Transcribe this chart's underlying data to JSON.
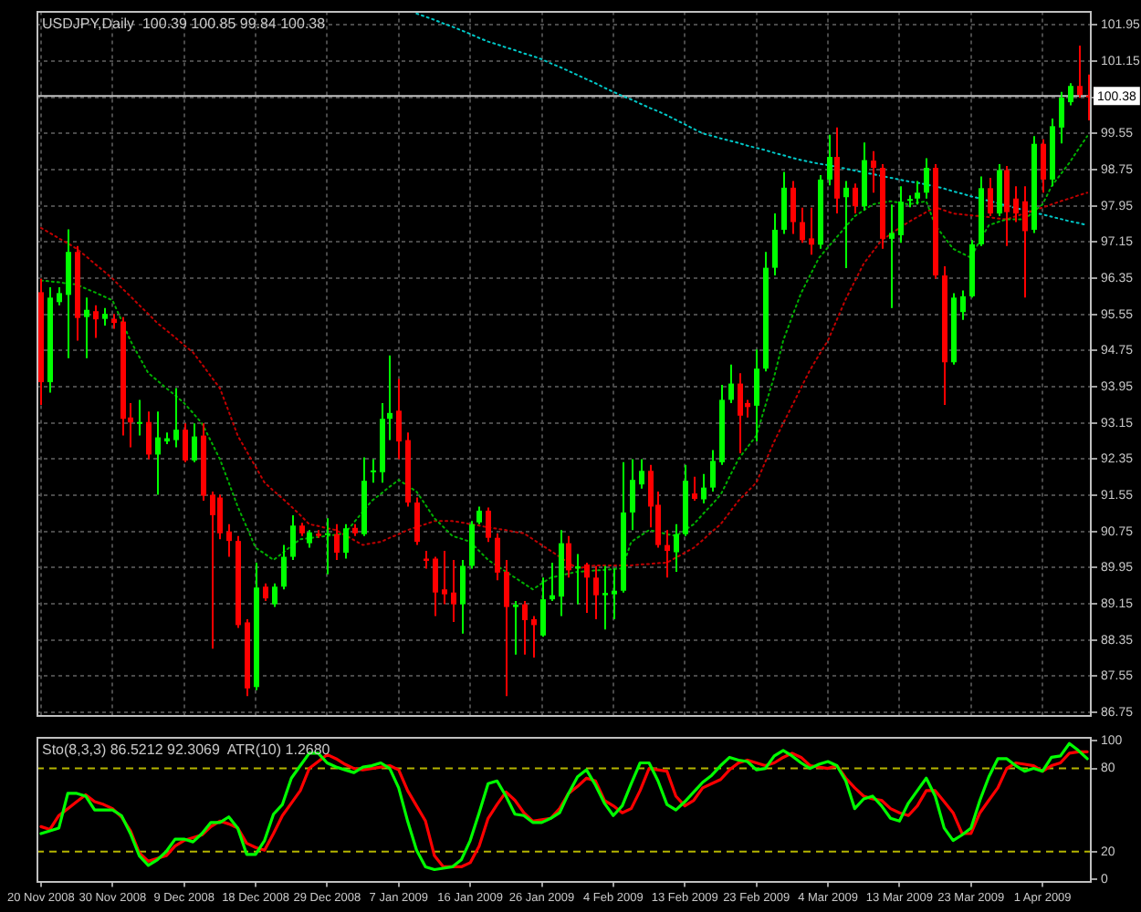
{
  "chart_data": [
    {
      "type": "candlestick",
      "title": "USDJPY,Daily  100.39 100.85 99.84 100.38",
      "categories": [
        null,
        null,
        null,
        null,
        null,
        null,
        null,
        null,
        null,
        null,
        null,
        null,
        null,
        null,
        null,
        null,
        null,
        null,
        null,
        null,
        null,
        null,
        null,
        null,
        null,
        null,
        null,
        null,
        null,
        null,
        null,
        null,
        null,
        null,
        null,
        null,
        null,
        null,
        null,
        null,
        null,
        null,
        null,
        null,
        null,
        null,
        null,
        null,
        null,
        null,
        null,
        null,
        null,
        null,
        null,
        null,
        null,
        null,
        null,
        null,
        null,
        null,
        null,
        null,
        null,
        null,
        null,
        null,
        null,
        null,
        null,
        null,
        null,
        null,
        null,
        null,
        null,
        null,
        null,
        null,
        null,
        null,
        null,
        null,
        null,
        null,
        null,
        null,
        null,
        null,
        null,
        null,
        null,
        null,
        null,
        null,
        null,
        null,
        null,
        null,
        null,
        null,
        null,
        null,
        null,
        null,
        null,
        null,
        null,
        null,
        null,
        null,
        null,
        null,
        null,
        null,
        null,
        null
      ],
      "ohlc": [
        [
          96.04,
          96.34,
          93.55,
          94.05
        ],
        [
          94.05,
          96.15,
          93.82,
          95.92
        ],
        [
          95.82,
          96.15,
          95.75,
          96.02
        ],
        [
          95.98,
          97.43,
          94.58,
          96.93
        ],
        [
          96.93,
          97.06,
          94.97,
          95.47
        ],
        [
          95.49,
          95.92,
          94.58,
          95.65
        ],
        [
          95.62,
          95.75,
          95.03,
          95.44
        ],
        [
          95.45,
          95.69,
          95.3,
          95.56
        ],
        [
          95.45,
          95.56,
          95.23,
          95.36
        ],
        [
          95.39,
          95.49,
          92.87,
          93.24
        ],
        [
          93.27,
          93.59,
          92.61,
          93.16
        ],
        [
          93.14,
          93.66,
          92.87,
          93.17
        ],
        [
          93.17,
          93.4,
          92.35,
          92.45
        ],
        [
          92.45,
          93.4,
          91.56,
          92.83
        ],
        [
          92.74,
          92.94,
          92.68,
          92.81
        ],
        [
          92.77,
          93.92,
          92.61,
          93.0
        ],
        [
          93.0,
          93.14,
          92.28,
          92.32
        ],
        [
          92.32,
          93.14,
          92.28,
          92.85
        ],
        [
          92.87,
          93.14,
          91.43,
          91.54
        ],
        [
          91.56,
          91.63,
          88.16,
          91.11
        ],
        [
          91.5,
          91.56,
          90.58,
          90.71
        ],
        [
          90.75,
          90.91,
          90.19,
          90.54
        ],
        [
          90.54,
          90.65,
          88.62,
          88.68
        ],
        [
          88.74,
          88.81,
          87.11,
          87.28
        ],
        [
          87.31,
          90.06,
          87.24,
          89.51
        ],
        [
          89.53,
          89.6,
          89.21,
          89.27
        ],
        [
          89.14,
          89.6,
          89.08,
          89.53
        ],
        [
          89.53,
          90.45,
          89.47,
          90.19
        ],
        [
          90.19,
          91.11,
          90.12,
          90.88
        ],
        [
          90.88,
          90.94,
          90.65,
          90.71
        ],
        [
          90.49,
          90.78,
          90.39,
          90.73
        ],
        [
          90.7,
          90.78,
          90.61,
          90.65
        ],
        [
          90.67,
          91.04,
          89.8,
          90.71
        ],
        [
          90.69,
          90.91,
          90.12,
          90.28
        ],
        [
          90.28,
          90.91,
          90.15,
          90.82
        ],
        [
          90.83,
          90.91,
          90.65,
          90.71
        ],
        [
          90.69,
          92.39,
          90.65,
          91.87
        ],
        [
          92.06,
          92.35,
          91.83,
          92.1
        ],
        [
          92.06,
          93.59,
          91.83,
          93.24
        ],
        [
          93.24,
          94.64,
          92.77,
          93.37
        ],
        [
          93.42,
          94.12,
          92.35,
          92.74
        ],
        [
          92.77,
          92.94,
          91.3,
          91.39
        ],
        [
          91.39,
          91.5,
          90.45,
          90.52
        ],
        [
          90.15,
          90.32,
          89.93,
          90.1
        ],
        [
          90.15,
          90.19,
          88.88,
          89.4
        ],
        [
          89.47,
          90.32,
          89.14,
          89.36
        ],
        [
          89.4,
          90.12,
          88.75,
          89.14
        ],
        [
          89.14,
          90.12,
          88.49,
          89.99
        ],
        [
          89.99,
          90.98,
          89.93,
          90.91
        ],
        [
          90.95,
          91.3,
          90.91,
          91.21
        ],
        [
          91.21,
          91.28,
          90.52,
          90.61
        ],
        [
          90.61,
          90.71,
          89.67,
          89.84
        ],
        [
          89.86,
          90.12,
          87.11,
          89.08
        ],
        [
          89.08,
          89.21,
          88.03,
          89.13
        ],
        [
          89.14,
          89.21,
          88.03,
          88.79
        ],
        [
          88.81,
          88.88,
          87.96,
          88.68
        ],
        [
          88.45,
          89.73,
          88.42,
          89.25
        ],
        [
          89.25,
          90.06,
          89.21,
          89.34
        ],
        [
          89.31,
          90.78,
          88.88,
          90.49
        ],
        [
          90.49,
          90.65,
          89.73,
          89.89
        ],
        [
          89.93,
          90.25,
          89.14,
          89.98
        ],
        [
          90.02,
          90.06,
          88.95,
          89.73
        ],
        [
          89.73,
          89.99,
          88.81,
          89.34
        ],
        [
          89.34,
          89.99,
          88.58,
          89.39
        ],
        [
          89.36,
          89.93,
          88.81,
          89.44
        ],
        [
          89.44,
          92.28,
          89.4,
          91.17
        ],
        [
          91.17,
          92.35,
          90.78,
          91.89
        ],
        [
          91.79,
          92.35,
          91.7,
          92.09
        ],
        [
          92.09,
          92.22,
          90.84,
          91.3
        ],
        [
          91.34,
          91.63,
          90.39,
          90.45
        ],
        [
          90.45,
          90.78,
          89.73,
          90.32
        ],
        [
          90.29,
          90.91,
          89.86,
          90.69
        ],
        [
          90.69,
          92.22,
          90.65,
          91.87
        ],
        [
          91.59,
          91.96,
          91.43,
          91.47
        ],
        [
          91.46,
          92.02,
          91.37,
          91.72
        ],
        [
          91.72,
          92.55,
          91.63,
          92.31
        ],
        [
          92.28,
          93.99,
          92.22,
          93.66
        ],
        [
          93.66,
          94.44,
          93.59,
          94.02
        ],
        [
          94.02,
          94.25,
          92.48,
          93.31
        ],
        [
          93.59,
          93.66,
          93.27,
          93.5
        ],
        [
          93.53,
          94.77,
          92.74,
          94.35
        ],
        [
          94.35,
          96.93,
          94.29,
          96.58
        ],
        [
          96.58,
          97.78,
          96.41,
          97.42
        ],
        [
          97.42,
          98.7,
          97.33,
          98.35
        ],
        [
          98.35,
          98.5,
          97.33,
          97.59
        ],
        [
          97.59,
          97.91,
          97.13,
          97.19
        ],
        [
          97.23,
          97.91,
          96.87,
          97.09
        ],
        [
          97.09,
          98.63,
          97.0,
          98.53
        ],
        [
          98.53,
          99.52,
          98.4,
          99.03
        ],
        [
          99.03,
          99.68,
          97.78,
          98.11
        ],
        [
          98.14,
          98.5,
          96.57,
          98.35
        ],
        [
          98.35,
          98.44,
          97.78,
          97.94
        ],
        [
          97.94,
          99.35,
          97.85,
          98.96
        ],
        [
          98.95,
          99.16,
          98.24,
          98.79
        ],
        [
          98.79,
          98.87,
          97.0,
          97.22
        ],
        [
          97.22,
          97.98,
          95.69,
          97.35
        ],
        [
          97.3,
          98.38,
          97.13,
          98.04
        ],
        [
          98.06,
          98.18,
          97.92,
          98.1
        ],
        [
          98.11,
          98.5,
          97.98,
          98.24
        ],
        [
          98.24,
          99.0,
          98.11,
          98.79
        ],
        [
          98.79,
          98.87,
          96.34,
          96.41
        ],
        [
          96.41,
          96.61,
          93.55,
          94.49
        ],
        [
          94.49,
          96.02,
          94.44,
          95.92
        ],
        [
          95.6,
          96.08,
          95.43,
          95.95
        ],
        [
          95.95,
          97.19,
          95.92,
          97.1
        ],
        [
          97.1,
          98.6,
          97.06,
          98.34
        ],
        [
          98.34,
          98.57,
          97.72,
          97.78
        ],
        [
          97.78,
          98.87,
          97.72,
          98.74
        ],
        [
          98.74,
          98.83,
          97.06,
          97.81
        ],
        [
          98.11,
          98.38,
          97.59,
          97.78
        ],
        [
          98.05,
          98.38,
          95.92,
          97.39
        ],
        [
          97.42,
          99.49,
          97.35,
          99.32
        ],
        [
          99.32,
          99.42,
          98.24,
          98.53
        ],
        [
          98.53,
          99.88,
          98.38,
          99.71
        ],
        [
          99.68,
          100.47,
          99.33,
          100.34
        ],
        [
          100.24,
          100.66,
          100.17,
          100.6
        ],
        [
          100.6,
          101.49,
          100.34,
          100.4
        ],
        [
          100.39,
          100.85,
          99.84,
          100.38
        ]
      ],
      "colors": [
        "#ff0000",
        "#00ff00",
        "#00ff00",
        "#00ff00",
        "#ff0000",
        "#00ff00",
        "#ff0000",
        "#00ff00",
        "#ff0000",
        "#ff0000",
        "#ff0000",
        "#00ff00",
        "#ff0000",
        "#00ff00",
        "#00ff00",
        "#00ff00",
        "#ff0000",
        "#00ff00",
        "#ff0000",
        "#ff0000",
        "#ff0000",
        "#ff0000",
        "#ff0000",
        "#ff0000",
        "#00ff00",
        "#ff0000",
        "#00ff00",
        "#00ff00",
        "#00ff00",
        "#ff0000",
        "#00ff00",
        "#ff0000",
        "#00ff00",
        "#ff0000",
        "#00ff00",
        "#ff0000",
        "#00ff00",
        "#00ff00",
        "#00ff00",
        "#00ff00",
        "#ff0000",
        "#ff0000",
        "#ff0000",
        "#ff0000",
        "#ff0000",
        "#ff0000",
        "#ff0000",
        "#00ff00",
        "#00ff00",
        "#00ff00",
        "#ff0000",
        "#ff0000",
        "#ff0000",
        "#00ff00",
        "#ff0000",
        "#ff0000",
        "#00ff00",
        "#00ff00",
        "#00ff00",
        "#ff0000",
        "#00ff00",
        "#ff0000",
        "#ff0000",
        "#00ff00",
        "#00ff00",
        "#00ff00",
        "#00ff00",
        "#00ff00",
        "#ff0000",
        "#ff0000",
        "#ff0000",
        "#00ff00",
        "#00ff00",
        "#ff0000",
        "#00ff00",
        "#00ff00",
        "#00ff00",
        "#00ff00",
        "#ff0000",
        "#ff0000",
        "#00ff00",
        "#00ff00",
        "#00ff00",
        "#00ff00",
        "#ff0000",
        "#ff0000",
        "#ff0000",
        "#00ff00",
        "#00ff00",
        "#ff0000",
        "#00ff00",
        "#ff0000",
        "#00ff00",
        "#ff0000",
        "#ff0000",
        "#00ff00",
        "#00ff00",
        "#00ff00",
        "#00ff00",
        "#00ff00",
        "#ff0000",
        "#ff0000",
        "#00ff00",
        "#00ff00",
        "#00ff00",
        "#00ff00",
        "#ff0000",
        "#00ff00",
        "#ff0000",
        "#ff0000",
        "#ff0000",
        "#00ff00",
        "#ff0000",
        "#00ff00",
        "#00ff00",
        "#00ff00",
        "#ff0000",
        "#ff0000"
      ],
      "series": [
        {
          "type": "line",
          "color": "#00b000",
          "line_style": "dotted",
          "values": [
            96.3,
            96.28,
            96.26,
            96.23,
            96.21,
            96.12,
            96.04,
            95.95,
            95.86,
            95.42,
            94.97,
            94.61,
            94.25,
            94.09,
            93.92,
            93.76,
            93.59,
            93.37,
            93.14,
            92.75,
            92.35,
            91.83,
            91.3,
            90.85,
            90.39,
            90.26,
            90.12,
            90.27,
            90.43,
            90.58,
            90.6,
            90.63,
            90.65,
            90.68,
            90.71,
            90.95,
            91.19,
            91.43,
            91.58,
            91.74,
            91.89,
            91.76,
            91.63,
            91.34,
            91.04,
            90.85,
            90.65,
            90.59,
            90.52,
            90.32,
            90.12,
            89.99,
            89.86,
            89.73,
            89.6,
            89.47,
            89.6,
            89.73,
            89.77,
            89.82,
            89.86,
            89.87,
            89.89,
            89.9,
            89.92,
            89.93,
            90.52,
            90.65,
            90.78,
            90.74,
            90.69,
            90.65,
            90.78,
            90.91,
            91.13,
            91.34,
            91.56,
            91.96,
            92.35,
            92.61,
            92.87,
            93.53,
            94.18,
            94.97,
            95.5,
            96.02,
            96.41,
            96.8,
            97.03,
            97.26,
            97.49,
            97.72,
            97.85,
            97.98,
            98.02,
            98.05,
            98.02,
            97.98,
            98.02,
            98.05,
            97.52,
            97.26,
            97.0,
            96.9,
            96.8,
            97.19,
            97.52,
            97.59,
            97.65,
            97.65,
            97.65,
            97.82,
            97.98,
            98.38,
            98.64,
            98.9,
            99.2,
            99.49
          ]
        },
        {
          "type": "line",
          "color": "#c00000",
          "line_style": "dotted",
          "values": [
            97.46,
            97.35,
            97.23,
            97.12,
            97.0,
            96.84,
            96.67,
            96.51,
            96.34,
            96.14,
            95.95,
            95.75,
            95.56,
            95.36,
            95.2,
            95.04,
            94.87,
            94.71,
            94.45,
            94.18,
            93.92,
            93.4,
            92.87,
            92.52,
            92.18,
            91.83,
            91.65,
            91.48,
            91.3,
            91.11,
            90.91,
            90.87,
            90.82,
            90.78,
            90.67,
            90.56,
            90.45,
            90.49,
            90.52,
            90.61,
            90.69,
            90.78,
            90.85,
            90.91,
            90.98,
            90.98,
            90.98,
            90.95,
            90.91,
            90.88,
            90.84,
            90.81,
            90.78,
            90.74,
            90.71,
            90.58,
            90.45,
            90.32,
            90.19,
            90.06,
            89.93,
            89.97,
            90.0,
            90.0,
            90.0,
            90.0,
            90.0,
            90.02,
            90.03,
            90.05,
            90.06,
            90.17,
            90.28,
            90.39,
            90.56,
            90.74,
            90.91,
            91.17,
            91.43,
            91.63,
            91.83,
            92.29,
            92.74,
            93.14,
            93.53,
            93.93,
            94.32,
            94.65,
            94.97,
            95.43,
            95.89,
            96.28,
            96.67,
            96.93,
            97.19,
            97.32,
            97.46,
            97.59,
            97.7,
            97.81,
            97.92,
            97.85,
            97.78,
            97.76,
            97.74,
            97.72,
            97.7,
            97.67,
            97.65,
            97.72,
            97.78,
            97.85,
            97.91,
            97.98,
            98.05,
            98.11,
            98.18,
            98.24
          ]
        },
        {
          "type": "line",
          "color": "#00c8c8",
          "line_style": "dotted",
          "values": [
            null,
            null,
            null,
            null,
            null,
            null,
            null,
            null,
            null,
            null,
            null,
            null,
            null,
            null,
            null,
            null,
            null,
            null,
            null,
            null,
            null,
            null,
            null,
            null,
            null,
            null,
            null,
            null,
            null,
            null,
            null,
            null,
            null,
            null,
            null,
            null,
            null,
            null,
            null,
            null,
            null,
            null,
            102.2,
            102.13,
            102.06,
            101.98,
            101.91,
            101.83,
            101.75,
            101.66,
            101.58,
            101.52,
            101.45,
            101.39,
            101.32,
            101.26,
            101.19,
            101.1,
            101.02,
            100.93,
            100.84,
            100.75,
            100.66,
            100.56,
            100.47,
            100.38,
            100.3,
            100.21,
            100.12,
            100.04,
            99.95,
            99.85,
            99.75,
            99.65,
            99.55,
            99.5,
            99.44,
            99.39,
            99.34,
            99.28,
            99.23,
            99.18,
            99.12,
            99.07,
            99.01,
            98.96,
            98.92,
            98.88,
            98.85,
            98.81,
            98.77,
            98.73,
            98.69,
            98.65,
            98.61,
            98.57,
            98.53,
            98.49,
            98.46,
            98.42,
            98.38,
            98.33,
            98.27,
            98.22,
            98.16,
            98.11,
            98.06,
            98.01,
            97.95,
            97.9,
            97.85,
            97.8,
            97.76,
            97.71,
            97.66,
            97.61,
            97.57,
            97.52
          ]
        }
      ],
      "ylim": [
        86.7,
        102.25
      ],
      "yticks": [
        101.95,
        101.15,
        {
          "value": 100.35,
          "label": null
        },
        99.55,
        98.75,
        97.95,
        97.15,
        96.35,
        95.55,
        94.75,
        93.95,
        93.15,
        92.35,
        91.55,
        90.75,
        89.95,
        89.15,
        88.35,
        87.55,
        86.75
      ],
      "tick_labels": "y",
      "grid": true,
      "ref_lines": [
        {
          "axis": "y",
          "value": 100.38,
          "label": "100.38",
          "color": "#c0c0c0",
          "line_style": "solid"
        }
      ]
    },
    {
      "type": "line",
      "annotations": [
        "Sto(8,3,3) 86.5212 92.3069  ATR(10) 1.2680"
      ],
      "marker": "none",
      "categories": [
        "20 Nov 2008",
        null,
        null,
        null,
        null,
        null,
        null,
        null,
        "30 Nov 2008",
        null,
        null,
        null,
        null,
        null,
        null,
        null,
        "9 Dec 2008",
        null,
        null,
        null,
        null,
        null,
        null,
        null,
        "18 Dec 2008",
        null,
        null,
        null,
        null,
        null,
        null,
        null,
        "29 Dec 2008",
        null,
        null,
        null,
        null,
        null,
        null,
        null,
        "7 Jan 2009",
        null,
        null,
        null,
        null,
        null,
        null,
        null,
        "16 Jan 2009",
        null,
        null,
        null,
        null,
        null,
        null,
        null,
        "26 Jan 2009",
        null,
        null,
        null,
        null,
        null,
        null,
        null,
        "4 Feb 2009",
        null,
        null,
        null,
        null,
        null,
        null,
        null,
        "13 Feb 2009",
        null,
        null,
        null,
        null,
        null,
        null,
        null,
        "23 Feb 2009",
        null,
        null,
        null,
        null,
        null,
        null,
        null,
        "4 Mar 2009",
        null,
        null,
        null,
        null,
        null,
        null,
        null,
        "13 Mar 2009",
        null,
        null,
        null,
        null,
        null,
        null,
        null,
        "23 Mar 2009",
        null,
        null,
        null,
        null,
        null,
        null,
        null,
        "1 Apr 2009",
        null,
        null,
        null,
        null,
        null
      ],
      "series": [
        {
          "color": "#00ff00",
          "values": [
            33,
            35,
            37,
            62,
            62,
            60,
            50,
            50,
            50,
            46,
            33,
            17,
            10,
            14,
            20,
            29,
            29,
            27,
            33,
            41,
            41,
            45,
            37,
            18,
            18,
            28,
            47,
            54,
            73,
            82,
            91,
            91,
            84,
            81,
            79,
            77,
            81,
            82,
            84,
            80,
            66,
            42,
            21,
            9,
            7,
            8,
            9,
            14,
            28,
            48,
            69,
            71,
            60,
            47,
            46,
            41,
            41,
            44,
            48,
            62,
            74,
            79,
            68,
            55,
            46,
            53,
            69,
            84,
            84,
            71,
            54,
            50,
            56,
            63,
            70,
            75,
            82,
            88,
            86,
            85,
            79,
            80,
            89,
            93,
            89,
            84,
            80,
            83,
            85,
            82,
            71,
            51,
            58,
            60,
            53,
            44,
            42,
            55,
            64,
            73,
            60,
            37,
            28,
            32,
            37,
            57,
            74,
            87,
            87,
            82,
            78,
            80,
            78,
            88,
            89,
            98,
            93,
            87
          ]
        },
        {
          "color": "#ff0000",
          "values": [
            38,
            36,
            46,
            51,
            56,
            61,
            56,
            54,
            51,
            45,
            35,
            19,
            13,
            15,
            17,
            24,
            28,
            30,
            32,
            38,
            42,
            40,
            37,
            26,
            23,
            21,
            33,
            46,
            55,
            64,
            80,
            85,
            90,
            87,
            83,
            80,
            79,
            80,
            81,
            82,
            79,
            64,
            53,
            42,
            17,
            9,
            9,
            9,
            12,
            24,
            44,
            54,
            63,
            57,
            48,
            42,
            43,
            44,
            51,
            62,
            67,
            73,
            71,
            57,
            53,
            48,
            51,
            64,
            80,
            79,
            78,
            60,
            53,
            57,
            66,
            69,
            72,
            79,
            84,
            86,
            84,
            82,
            84,
            88,
            91,
            88,
            82,
            81,
            80,
            82,
            73,
            66,
            60,
            58,
            57,
            51,
            48,
            46,
            53,
            64,
            64,
            56,
            48,
            33,
            33,
            48,
            57,
            66,
            80,
            84,
            83,
            82,
            78,
            82,
            84,
            91,
            92,
            92
          ]
        }
      ],
      "ylim": [
        -1.5,
        102.5
      ],
      "yticks": [
        0,
        20,
        80,
        100
      ],
      "ref_lines": [
        {
          "axis": "y",
          "value": 20,
          "color": "#b4b400",
          "line_style": "dashed"
        },
        {
          "axis": "y",
          "value": 80,
          "color": "#b4b400",
          "line_style": "dashed"
        }
      ]
    }
  ]
}
